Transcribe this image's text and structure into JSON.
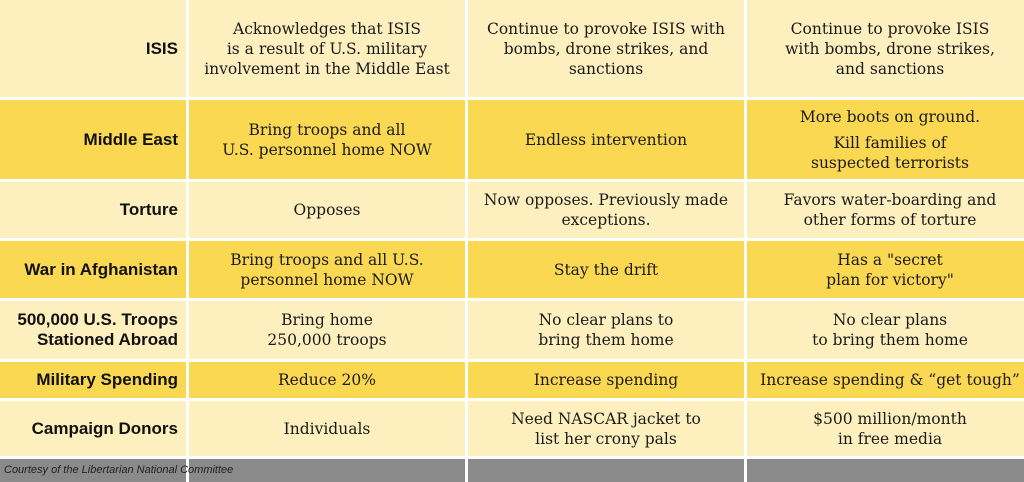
{
  "rows": [
    {
      "label": "ISIS",
      "cells": [
        [
          "Acknowledges that ISIS",
          "is a result of U.S. military",
          "involvement in the Middle East"
        ],
        [
          "Continue to provoke ISIS with",
          "bombs, drone strikes, and",
          "sanctions"
        ],
        [
          "Continue to provoke ISIS",
          "with bombs, drone strikes,",
          "and sanctions"
        ]
      ]
    },
    {
      "label": "Middle East",
      "cells": [
        [
          "Bring troops and all",
          "U.S. personnel home NOW"
        ],
        [
          "Endless intervention"
        ],
        [
          "More boots on ground.",
          "Kill families of",
          "suspected terrorists"
        ]
      ]
    },
    {
      "label": "Torture",
      "cells": [
        [
          "Opposes"
        ],
        [
          "Now opposes. Previously made",
          "exceptions."
        ],
        [
          "Favors water-boarding and",
          "other forms of torture"
        ]
      ]
    },
    {
      "label": "War in Afghanistan",
      "cells": [
        [
          "Bring troops and all U.S.",
          "personnel home NOW"
        ],
        [
          "Stay the drift"
        ],
        [
          "Has a \"secret",
          "plan for victory\""
        ]
      ]
    },
    {
      "label_lines": [
        "500,000 U.S. Troops",
        "Stationed Abroad"
      ],
      "cells": [
        [
          "Bring home",
          "250,000 troops"
        ],
        [
          "No clear plans to",
          "bring them home"
        ],
        [
          "No clear plans",
          "to bring them home"
        ]
      ]
    },
    {
      "label": "Military Spending",
      "cells": [
        [
          "Reduce 20%"
        ],
        [
          "Increase spending"
        ],
        [
          "Increase spending & “get tough”"
        ]
      ]
    },
    {
      "label": "Campaign Donors",
      "cells": [
        [
          "Individuals"
        ],
        [
          "Need NASCAR jacket to",
          "list her crony pals"
        ],
        [
          "$500 million/month",
          "in free media"
        ]
      ]
    }
  ],
  "footer": "Courtesy of the Libertarian National Committee",
  "colors": {
    "light_row": "#fdf0be",
    "dark_row": "#fbd852",
    "footer_bar": "#8a8a8a"
  }
}
